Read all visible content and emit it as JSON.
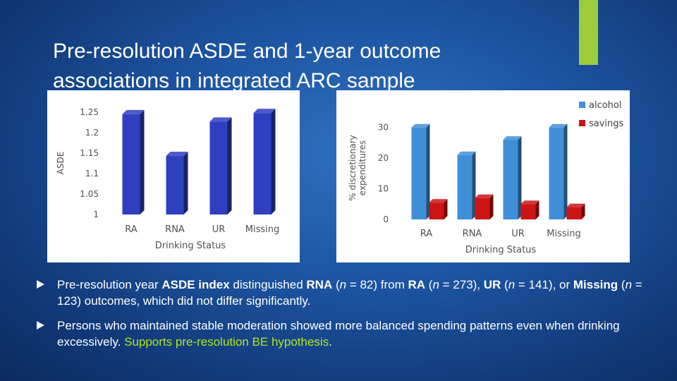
{
  "slide": {
    "title": "Pre-resolution ASDE and 1-year outcome associations in integrated ARC sample",
    "accent_color": "#9ccb3b"
  },
  "bullets": [
    {
      "parts": [
        {
          "text": "Pre-resolution year "
        },
        {
          "text": "ASDE index",
          "bold": true
        },
        {
          "text": " distinguished "
        },
        {
          "text": "RNA",
          "bold": true
        },
        {
          "text": " ("
        },
        {
          "text": "n",
          "italic": true
        },
        {
          "text": " = 82) from "
        },
        {
          "text": "RA",
          "bold": true
        },
        {
          "text": " ("
        },
        {
          "text": "n",
          "italic": true
        },
        {
          "text": " = 273), "
        },
        {
          "text": "UR",
          "bold": true
        },
        {
          "text": " ("
        },
        {
          "text": "n",
          "italic": true
        },
        {
          "text": " = 141), or "
        },
        {
          "text": "Missing",
          "bold": true
        },
        {
          "text": " ("
        },
        {
          "text": "n",
          "italic": true
        },
        {
          "text": " = 123) outcomes, which did not differ significantly."
        }
      ]
    },
    {
      "parts": [
        {
          "text": "Persons who maintained stable moderation showed more balanced spending patterns even when drinking excessively.  "
        },
        {
          "text": "Supports pre-resolution BE hypothesis",
          "highlight": true
        },
        {
          "text": "."
        }
      ]
    }
  ],
  "chart_data": [
    {
      "type": "bar",
      "title": "",
      "categories": [
        "RA",
        "RNA",
        "UR",
        "Missing"
      ],
      "series": [
        {
          "values": [
            1.245,
            1.143,
            1.227,
            1.248
          ],
          "color": "#2e3fbf"
        }
      ],
      "xlabel": "Drinking Status",
      "ylabel": "ASDE",
      "ylim": [
        1,
        1.25
      ],
      "yticks": [
        "1",
        "1.05",
        "1.1",
        "1.15",
        "1.2",
        "1.25"
      ],
      "legend": null,
      "grid": false
    },
    {
      "type": "bar",
      "title": "",
      "categories": [
        "RA",
        "RNA",
        "UR",
        "Missing"
      ],
      "series": [
        {
          "name": "alcohol",
          "values": [
            30,
            21,
            26,
            30
          ],
          "color": "#3f8fd8"
        },
        {
          "name": "savings",
          "values": [
            5.5,
            7,
            5,
            4
          ],
          "color": "#cc1414"
        }
      ],
      "xlabel": "Drinking Status",
      "ylabel": "% discretionary expenditures",
      "ylim": [
        0,
        35
      ],
      "yticks": [
        "0",
        "10",
        "20",
        "30"
      ],
      "legend": "top-right",
      "grid": false
    }
  ]
}
